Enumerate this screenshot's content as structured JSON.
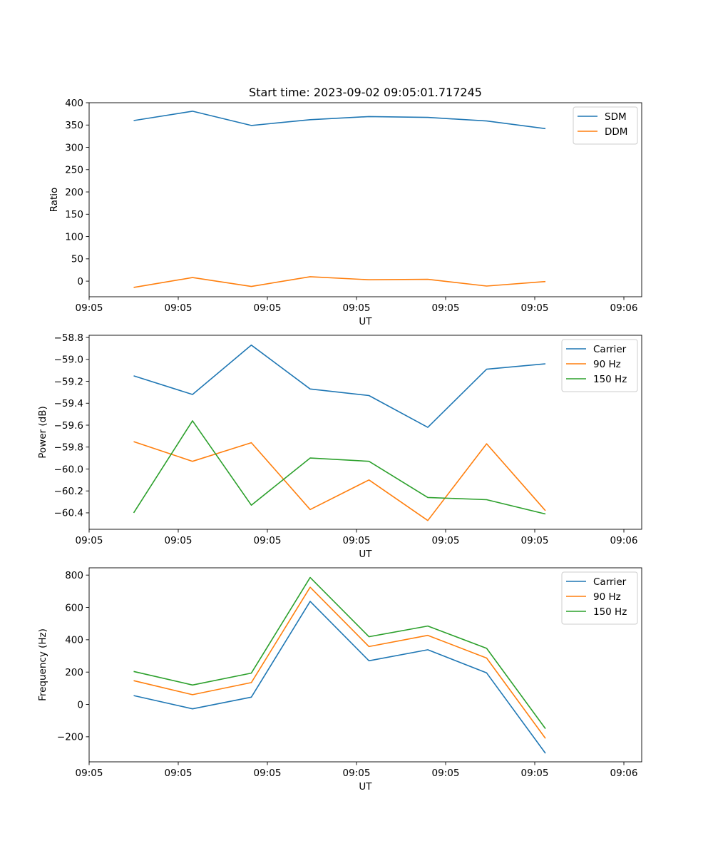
{
  "chart_data": [
    {
      "type": "line",
      "title": "Start time: 2023-09-02 09:05:01.717245",
      "xlabel": "UT",
      "ylabel": "Ratio",
      "xlim": [
        0,
        9.3
      ],
      "ylim": [
        -35,
        400
      ],
      "x": [
        0.75,
        1.74,
        2.73,
        3.72,
        4.71,
        5.7,
        6.69,
        7.68
      ],
      "xticks": [
        0,
        1.5,
        3,
        4.5,
        6,
        7.5,
        9
      ],
      "xtick_labels": [
        "09:05",
        "09:05",
        "09:05",
        "09:05",
        "09:05",
        "09:05",
        "09:06"
      ],
      "yticks": [
        0,
        50,
        100,
        150,
        200,
        250,
        300,
        350,
        400
      ],
      "ytick_labels": [
        "0",
        "50",
        "100",
        "150",
        "200",
        "250",
        "300",
        "350",
        "400"
      ],
      "legend_position": "top-right",
      "series": [
        {
          "name": "SDM",
          "color": "#1f77b4",
          "values": [
            360,
            381,
            349,
            362,
            369,
            367,
            359,
            342
          ]
        },
        {
          "name": "DDM",
          "color": "#ff7f0e",
          "values": [
            -14,
            8,
            -12,
            10,
            3,
            4,
            -11,
            -1
          ]
        }
      ]
    },
    {
      "type": "line",
      "title": "",
      "xlabel": "UT",
      "ylabel": "Power (dB)",
      "xlim": [
        0,
        9.3
      ],
      "ylim": [
        -60.55,
        -58.78
      ],
      "x": [
        0.75,
        1.74,
        2.73,
        3.72,
        4.71,
        5.7,
        6.69,
        7.68
      ],
      "xticks": [
        0,
        1.5,
        3,
        4.5,
        6,
        7.5,
        9
      ],
      "xtick_labels": [
        "09:05",
        "09:05",
        "09:05",
        "09:05",
        "09:05",
        "09:05",
        "09:06"
      ],
      "yticks": [
        -60.4,
        -60.2,
        -60.0,
        -59.8,
        -59.6,
        -59.4,
        -59.2,
        -59.0,
        -58.8
      ],
      "ytick_labels": [
        "−60.4",
        "−60.2",
        "−60.0",
        "−59.8",
        "−59.6",
        "−59.4",
        "−59.2",
        "−59.0",
        "−58.8"
      ],
      "legend_position": "top-right",
      "series": [
        {
          "name": "Carrier",
          "color": "#1f77b4",
          "values": [
            -59.15,
            -59.32,
            -58.87,
            -59.27,
            -59.33,
            -59.62,
            -59.09,
            -59.04
          ]
        },
        {
          "name": "90 Hz",
          "color": "#ff7f0e",
          "values": [
            -59.75,
            -59.93,
            -59.76,
            -60.37,
            -60.1,
            -60.47,
            -59.77,
            -60.38
          ]
        },
        {
          "name": "150 Hz",
          "color": "#2ca02c",
          "values": [
            -60.4,
            -59.56,
            -60.33,
            -59.9,
            -59.93,
            -60.26,
            -60.28,
            -60.41
          ]
        }
      ]
    },
    {
      "type": "line",
      "title": "",
      "xlabel": "UT",
      "ylabel": "Frequency (Hz)",
      "xlim": [
        0,
        9.3
      ],
      "ylim": [
        -355,
        845
      ],
      "x": [
        0.75,
        1.74,
        2.73,
        3.72,
        4.71,
        5.7,
        6.69,
        7.68
      ],
      "xticks": [
        0,
        1.5,
        3,
        4.5,
        6,
        7.5,
        9
      ],
      "xtick_labels": [
        "09:05",
        "09:05",
        "09:05",
        "09:05",
        "09:05",
        "09:05",
        "09:06"
      ],
      "yticks": [
        -200,
        0,
        200,
        400,
        600,
        800
      ],
      "ytick_labels": [
        "−200",
        "0",
        "200",
        "400",
        "600",
        "800"
      ],
      "legend_position": "top-right",
      "series": [
        {
          "name": "Carrier",
          "color": "#1f77b4",
          "values": [
            55,
            -27,
            45,
            637,
            270,
            338,
            195,
            -302
          ]
        },
        {
          "name": "90 Hz",
          "color": "#ff7f0e",
          "values": [
            147,
            60,
            135,
            725,
            358,
            427,
            287,
            -210
          ]
        },
        {
          "name": "150 Hz",
          "color": "#2ca02c",
          "values": [
            204,
            120,
            194,
            785,
            419,
            485,
            347,
            -150
          ]
        }
      ]
    }
  ]
}
